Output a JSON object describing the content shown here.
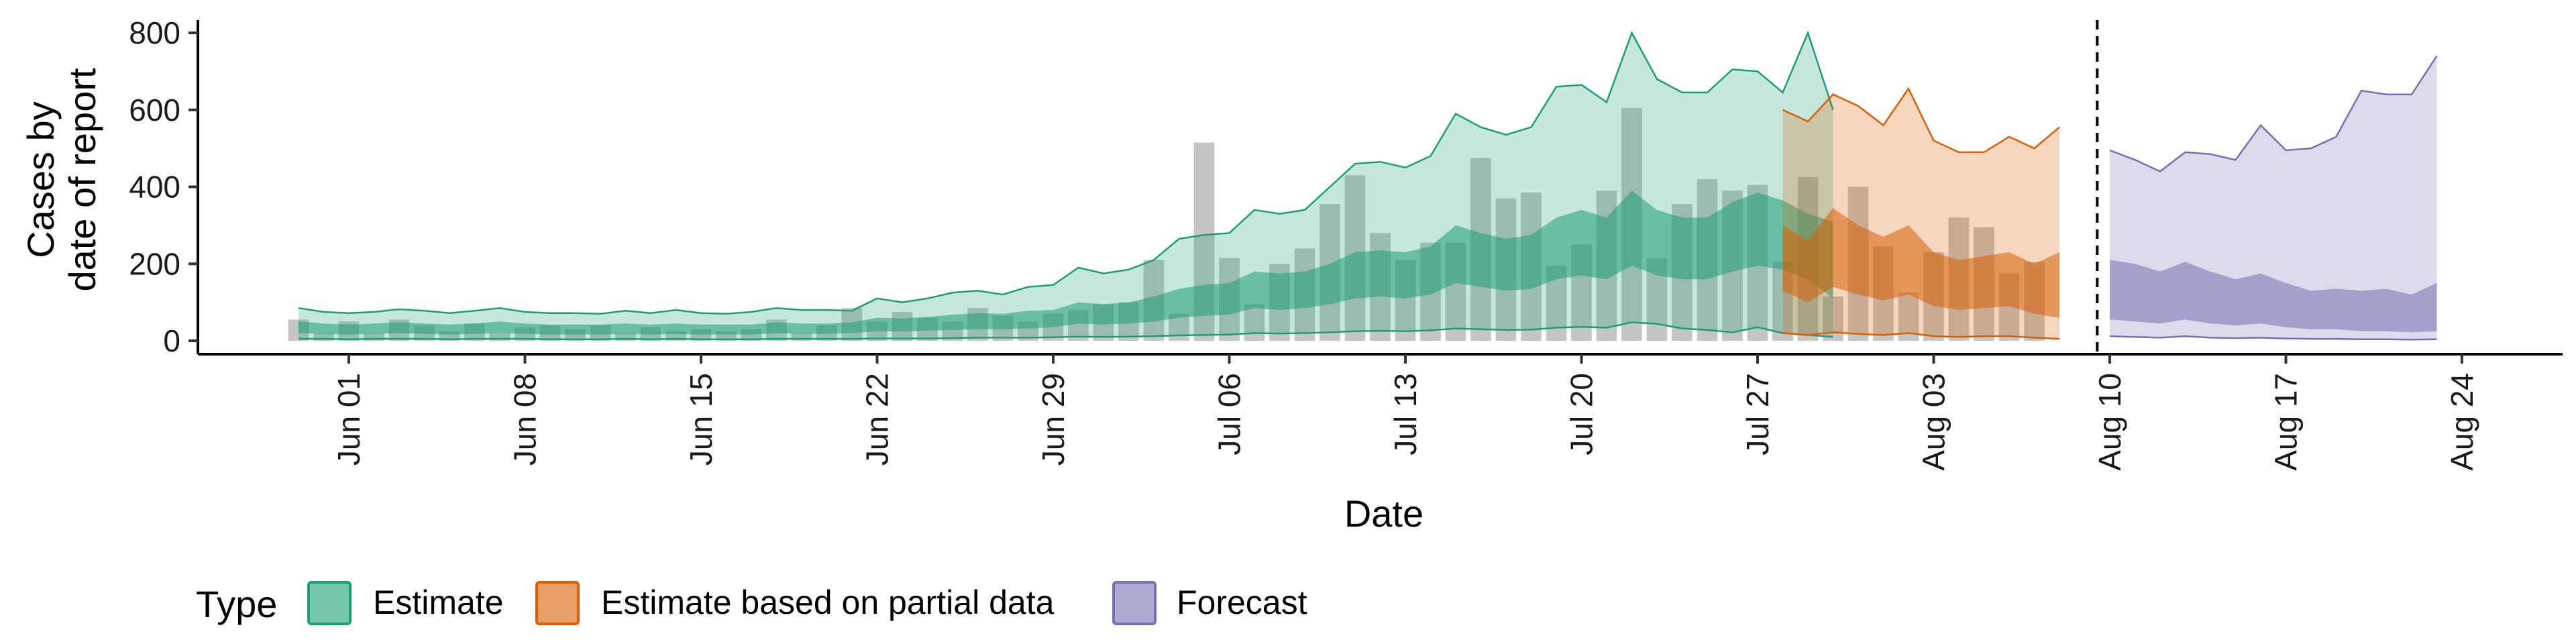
{
  "chart_data": {
    "type": "area",
    "xlabel": "Date",
    "ylabel": [
      "Cases by",
      "date of report"
    ],
    "ylim": [
      0,
      800
    ],
    "yticks": [
      0,
      200,
      400,
      600,
      800
    ],
    "xlim": [
      "2020-05-26",
      "2020-08-28"
    ],
    "xticks": [
      {
        "date": "2020-06-01",
        "label": "Jun 01"
      },
      {
        "date": "2020-06-08",
        "label": "Jun 08"
      },
      {
        "date": "2020-06-15",
        "label": "Jun 15"
      },
      {
        "date": "2020-06-22",
        "label": "Jun 22"
      },
      {
        "date": "2020-06-29",
        "label": "Jun 29"
      },
      {
        "date": "2020-07-06",
        "label": "Jul 06"
      },
      {
        "date": "2020-07-13",
        "label": "Jul 13"
      },
      {
        "date": "2020-07-20",
        "label": "Jul 20"
      },
      {
        "date": "2020-07-27",
        "label": "Jul 27"
      },
      {
        "date": "2020-08-03",
        "label": "Aug 03"
      },
      {
        "date": "2020-08-10",
        "label": "Aug 10"
      },
      {
        "date": "2020-08-17",
        "label": "Aug 17"
      },
      {
        "date": "2020-08-24",
        "label": "Aug 24"
      }
    ],
    "grid": false,
    "legend": {
      "title": "Type",
      "placement": "bottom",
      "entries": [
        {
          "label": "Estimate",
          "fill": "#1b9e77"
        },
        {
          "label": "Estimate based on partial data",
          "fill": "#d95f02"
        },
        {
          "label": "Forecast",
          "fill": "#7570b3"
        }
      ]
    },
    "vline_date": "2020-08-09",
    "reported_cases": {
      "start_date": "2020-05-30",
      "values": [
        55,
        20,
        50,
        20,
        55,
        40,
        25,
        45,
        20,
        35,
        40,
        30,
        40,
        20,
        35,
        25,
        30,
        25,
        30,
        55,
        20,
        40,
        85,
        50,
        75,
        60,
        50,
        85,
        65,
        50,
        70,
        80,
        95,
        100,
        210,
        70,
        515,
        215,
        95,
        200,
        240,
        355,
        430,
        280,
        210,
        255,
        255,
        475,
        370,
        385,
        195,
        250,
        390,
        605,
        215,
        355,
        420,
        390,
        405,
        205,
        425,
        115,
        400,
        245,
        125,
        230,
        320,
        295,
        175,
        205
      ]
    },
    "series": [
      {
        "name": "Estimate",
        "fill": "#1b9e77",
        "start_date": "2020-05-30",
        "outer_upper": [
          85,
          75,
          72,
          75,
          82,
          78,
          72,
          78,
          85,
          75,
          72,
          72,
          70,
          78,
          72,
          80,
          72,
          70,
          75,
          85,
          80,
          80,
          78,
          110,
          100,
          110,
          125,
          130,
          120,
          140,
          145,
          190,
          175,
          185,
          210,
          265,
          275,
          280,
          340,
          330,
          340,
          400,
          460,
          465,
          450,
          480,
          590,
          555,
          535,
          555,
          660,
          665,
          620,
          800,
          680,
          645,
          645,
          705,
          700,
          645,
          800,
          600
        ],
        "inner_upper": [
          50,
          45,
          42,
          45,
          48,
          45,
          42,
          45,
          50,
          45,
          42,
          42,
          42,
          45,
          42,
          45,
          42,
          42,
          42,
          48,
          45,
          45,
          48,
          60,
          58,
          62,
          68,
          72,
          70,
          78,
          80,
          100,
          95,
          100,
          115,
          135,
          145,
          150,
          180,
          175,
          180,
          200,
          230,
          235,
          230,
          245,
          300,
          280,
          265,
          275,
          320,
          340,
          320,
          390,
          340,
          320,
          320,
          360,
          385,
          365,
          330,
          310
        ],
        "inner_lower": [
          20,
          18,
          16,
          18,
          20,
          18,
          16,
          18,
          20,
          18,
          16,
          16,
          16,
          18,
          16,
          18,
          16,
          16,
          16,
          20,
          18,
          18,
          20,
          25,
          24,
          26,
          28,
          30,
          30,
          32,
          35,
          45,
          42,
          45,
          50,
          60,
          65,
          68,
          85,
          80,
          85,
          95,
          110,
          115,
          110,
          120,
          150,
          140,
          130,
          135,
          160,
          170,
          160,
          195,
          170,
          160,
          160,
          180,
          195,
          185,
          160,
          110
        ],
        "outer_lower": [
          5,
          5,
          4,
          5,
          5,
          5,
          4,
          5,
          5,
          5,
          4,
          4,
          4,
          5,
          4,
          5,
          4,
          4,
          4,
          5,
          5,
          5,
          5,
          6,
          6,
          6,
          7,
          8,
          8,
          8,
          9,
          11,
          10,
          11,
          12,
          14,
          15,
          16,
          20,
          19,
          20,
          22,
          25,
          26,
          25,
          27,
          32,
          30,
          28,
          29,
          34,
          36,
          34,
          48,
          44,
          32,
          28,
          22,
          35,
          20,
          15,
          10
        ]
      },
      {
        "name": "Estimate based on partial data",
        "fill": "#d95f02",
        "start_date": "2020-07-28",
        "outer_upper": [
          600,
          570,
          640,
          610,
          560,
          655,
          520,
          490,
          490,
          530,
          500,
          555
        ],
        "inner_upper": [
          300,
          260,
          345,
          300,
          270,
          300,
          230,
          210,
          220,
          230,
          200,
          230
        ],
        "inner_lower": [
          130,
          100,
          140,
          120,
          105,
          120,
          90,
          80,
          85,
          90,
          70,
          60
        ],
        "outer_lower": [
          20,
          15,
          22,
          18,
          15,
          20,
          12,
          10,
          12,
          12,
          8,
          5
        ]
      },
      {
        "name": "Forecast",
        "fill": "#7570b3",
        "start_date": "2020-08-10",
        "outer_upper": [
          495,
          470,
          440,
          490,
          485,
          470,
          560,
          495,
          500,
          530,
          650,
          640,
          640,
          740
        ],
        "inner_upper": [
          210,
          200,
          180,
          205,
          180,
          160,
          175,
          150,
          130,
          135,
          130,
          135,
          120,
          150
        ],
        "inner_lower": [
          55,
          50,
          45,
          55,
          45,
          40,
          45,
          35,
          30,
          30,
          25,
          25,
          22,
          25
        ],
        "outer_lower": [
          12,
          10,
          8,
          12,
          8,
          7,
          8,
          6,
          5,
          5,
          4,
          4,
          3,
          4
        ]
      }
    ]
  }
}
